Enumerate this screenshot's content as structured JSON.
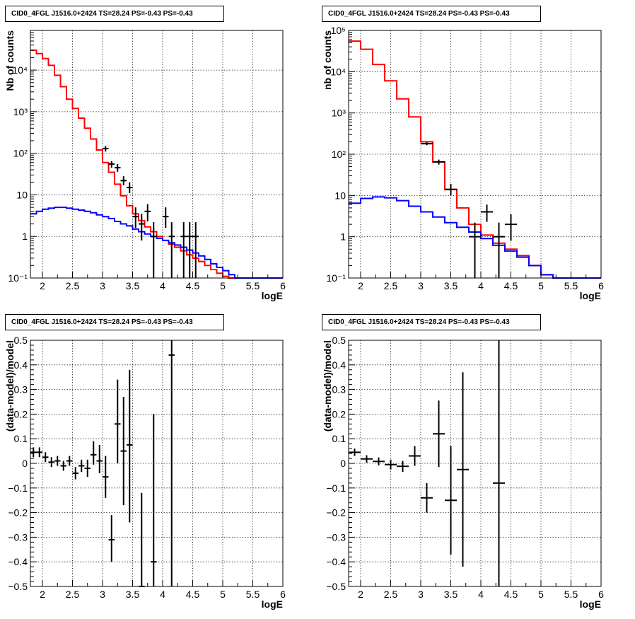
{
  "pad_titles": [
    "CID0_4FGL J1516.0+2424 TS=28.24 PS=-0.43 PS=-0.43",
    "CID0_4FGL J1516.0+2424 TS=28.24 PS=-0.43 PS=-0.43",
    "CID0_4FGL J1516.0+2424 TS=28.24 PS=-0.43 PS=-0.43",
    "CID0_4FGL J1516.0+2424 TS=28.24 PS=-0.43 PS=-0.43"
  ],
  "colors": {
    "data": "#000000",
    "total_model": "#ff0000",
    "background_model": "#0000ff",
    "grid": "#000000"
  },
  "chart_data": [
    {
      "type": "line",
      "title": "CID0_4FGL J1516.0+2424 TS=28.24 PS=-0.43 PS=-0.43",
      "xlabel": "logE",
      "ylabel": "Nb of counts",
      "xlim": [
        1.8,
        6
      ],
      "ylim": [
        0.1,
        90000
      ],
      "log_y": true,
      "grid": true,
      "x_ticks": [
        "2",
        "2.5",
        "3",
        "3.5",
        "4",
        "4.5",
        "5",
        "5.5",
        "6"
      ],
      "y_ticks": [
        {
          "value": 0.1,
          "label": "10⁻¹"
        },
        {
          "value": 1,
          "label": "1"
        },
        {
          "value": 10,
          "label": "10"
        },
        {
          "value": 100,
          "label": "10²"
        },
        {
          "value": 1000,
          "label": "10³"
        },
        {
          "value": 10000,
          "label": "10⁴"
        }
      ],
      "bin_edges": [
        1.8,
        1.9,
        2.0,
        2.1,
        2.2,
        2.3,
        2.4,
        2.5,
        2.6,
        2.7,
        2.8,
        2.9,
        3.0,
        3.1,
        3.2,
        3.3,
        3.4,
        3.5,
        3.6,
        3.7,
        3.8,
        3.9,
        4.0,
        4.1,
        4.2,
        4.3,
        4.4,
        4.5,
        4.6,
        4.7,
        4.8,
        4.9,
        5.0,
        5.1,
        5.2,
        5.3,
        5.4,
        5.5,
        5.6,
        5.7,
        5.8,
        5.9,
        6.0
      ],
      "series": [
        {
          "role": "total_model",
          "color": "#ff0000",
          "values": [
            30000,
            25000,
            19000,
            13000,
            7500,
            4000,
            2000,
            1200,
            700,
            400,
            220,
            120,
            60,
            35,
            18,
            9.5,
            5.5,
            3.5,
            2.4,
            1.7,
            1.3,
            1.0,
            0.8,
            0.65,
            0.55,
            0.45,
            0.36,
            0.3,
            0.25,
            0.2,
            0.16,
            0.13,
            0.11,
            0.1,
            0.1,
            0.1,
            0.1,
            0.1,
            0.1,
            0.1,
            0.1,
            0.1
          ]
        },
        {
          "role": "background_model",
          "color": "#0000ff",
          "values": [
            3.5,
            4.0,
            4.5,
            4.8,
            5.0,
            5.0,
            4.8,
            4.5,
            4.3,
            4.0,
            3.7,
            3.3,
            3.0,
            2.7,
            2.3,
            2.0,
            1.8,
            1.5,
            1.3,
            1.15,
            1.0,
            0.9,
            0.8,
            0.7,
            0.62,
            0.55,
            0.47,
            0.4,
            0.34,
            0.28,
            0.22,
            0.18,
            0.15,
            0.12,
            0.1,
            0.1,
            0.1,
            0.1,
            0.1,
            0.1,
            0.1,
            0.1
          ]
        },
        {
          "role": "data",
          "color": "#000000",
          "points": [
            {
              "x": 3.05,
              "y": 130,
              "lo": 110,
              "hi": 150
            },
            {
              "x": 3.15,
              "y": 55,
              "lo": 45,
              "hi": 65
            },
            {
              "x": 3.25,
              "y": 45,
              "lo": 36,
              "hi": 55
            },
            {
              "x": 3.35,
              "y": 22,
              "lo": 17,
              "hi": 28
            },
            {
              "x": 3.45,
              "y": 15,
              "lo": 11,
              "hi": 20
            },
            {
              "x": 3.55,
              "y": 3,
              "lo": 1.6,
              "hi": 5
            },
            {
              "x": 3.65,
              "y": 2,
              "lo": 0.8,
              "hi": 3.5
            },
            {
              "x": 3.75,
              "y": 4,
              "lo": 2.3,
              "hi": 6
            },
            {
              "x": 3.85,
              "y": 1,
              "lo": 0.1,
              "hi": 2.2
            },
            {
              "x": 4.05,
              "y": 3,
              "lo": 1.6,
              "hi": 5
            },
            {
              "x": 4.15,
              "y": 1,
              "lo": 0.1,
              "hi": 2.2
            },
            {
              "x": 4.35,
              "y": 1,
              "lo": 0.1,
              "hi": 2.2
            },
            {
              "x": 4.45,
              "y": 1,
              "lo": 0.1,
              "hi": 2.2
            },
            {
              "x": 4.55,
              "y": 1,
              "lo": 0.1,
              "hi": 2.2
            }
          ]
        }
      ]
    },
    {
      "type": "line",
      "title": "CID0_4FGL J1516.0+2424 TS=28.24 PS=-0.43 PS=-0.43",
      "xlabel": "logE",
      "ylabel": "nb of counts",
      "xlim": [
        1.8,
        6
      ],
      "ylim": [
        0.1,
        100000
      ],
      "log_y": true,
      "grid": true,
      "x_ticks": [
        "2",
        "2.5",
        "3",
        "3.5",
        "4",
        "4.5",
        "5",
        "5.5",
        "6"
      ],
      "y_ticks": [
        {
          "value": 0.1,
          "label": "10⁻¹"
        },
        {
          "value": 1,
          "label": "1"
        },
        {
          "value": 10,
          "label": "10"
        },
        {
          "value": 100,
          "label": "10²"
        },
        {
          "value": 1000,
          "label": "10³"
        },
        {
          "value": 10000,
          "label": "10⁴"
        },
        {
          "value": 100000,
          "label": "10⁵"
        }
      ],
      "bin_edges": [
        1.8,
        2.0,
        2.2,
        2.4,
        2.6,
        2.8,
        3.0,
        3.2,
        3.4,
        3.6,
        3.8,
        4.0,
        4.2,
        4.4,
        4.6,
        4.8,
        5.0,
        5.2,
        5.4,
        5.6,
        5.8,
        6.0
      ],
      "series": [
        {
          "role": "total_model",
          "color": "#ff0000",
          "values": [
            55000,
            35000,
            15000,
            6000,
            2200,
            800,
            200,
            65,
            14,
            5,
            2,
            1.1,
            0.7,
            0.5,
            0.35,
            0.2,
            0.12,
            0.1,
            0.1,
            0.1,
            0.1
          ]
        },
        {
          "role": "background_model",
          "color": "#0000ff",
          "values": [
            6.5,
            8.5,
            9.2,
            8.8,
            7.5,
            5.5,
            4.0,
            3.0,
            2.2,
            1.7,
            1.3,
            0.9,
            0.62,
            0.45,
            0.32,
            0.2,
            0.12,
            0.1,
            0.1,
            0.1,
            0.1
          ]
        },
        {
          "role": "data",
          "color": "#000000",
          "points": [
            {
              "x": 3.1,
              "y": 180,
              "lo": 165,
              "hi": 195
            },
            {
              "x": 3.3,
              "y": 65,
              "lo": 56,
              "hi": 74
            },
            {
              "x": 3.5,
              "y": 14,
              "lo": 10,
              "hi": 19
            },
            {
              "x": 3.9,
              "y": 1,
              "lo": 0.1,
              "hi": 2.2
            },
            {
              "x": 4.1,
              "y": 4,
              "lo": 2.3,
              "hi": 6
            },
            {
              "x": 4.3,
              "y": 1,
              "lo": 0.1,
              "hi": 2.2
            },
            {
              "x": 4.5,
              "y": 2,
              "lo": 0.8,
              "hi": 3.5
            }
          ]
        }
      ]
    },
    {
      "type": "scatter",
      "title": "CID0_4FGL J1516.0+2424 TS=28.24 PS=-0.43 PS=-0.43",
      "xlabel": "logE",
      "ylabel": "(data-model)/model",
      "xlim": [
        1.8,
        6
      ],
      "ylim": [
        -0.5,
        0.5
      ],
      "grid": true,
      "x_ticks": [
        "2",
        "2.5",
        "3",
        "3.5",
        "4",
        "4.5",
        "5",
        "5.5",
        "6"
      ],
      "y_ticks": [
        "−0.5",
        "−0.4",
        "−0.3",
        "−0.2",
        "−0.1",
        "0",
        "0.1",
        "0.2",
        "0.3",
        "0.4",
        "0.5"
      ],
      "bin_width": 0.1,
      "series": [
        {
          "role": "data",
          "color": "#000000",
          "points": [
            {
              "x": 1.85,
              "y": 0.045,
              "lo": 0.025,
              "hi": 0.065
            },
            {
              "x": 1.95,
              "y": 0.045,
              "lo": 0.025,
              "hi": 0.065
            },
            {
              "x": 2.05,
              "y": 0.025,
              "lo": 0.005,
              "hi": 0.045
            },
            {
              "x": 2.15,
              "y": 0.005,
              "lo": -0.015,
              "hi": 0.025
            },
            {
              "x": 2.25,
              "y": 0.01,
              "lo": -0.01,
              "hi": 0.03
            },
            {
              "x": 2.35,
              "y": -0.01,
              "lo": -0.03,
              "hi": 0.01
            },
            {
              "x": 2.45,
              "y": 0.01,
              "lo": -0.01,
              "hi": 0.03
            },
            {
              "x": 2.55,
              "y": -0.04,
              "lo": -0.065,
              "hi": -0.015
            },
            {
              "x": 2.65,
              "y": -0.01,
              "lo": -0.035,
              "hi": 0.015
            },
            {
              "x": 2.75,
              "y": -0.02,
              "lo": -0.055,
              "hi": 0.015
            },
            {
              "x": 2.85,
              "y": 0.035,
              "lo": -0.005,
              "hi": 0.09
            },
            {
              "x": 2.95,
              "y": 0.01,
              "lo": -0.04,
              "hi": 0.075
            },
            {
              "x": 3.05,
              "y": -0.055,
              "lo": -0.14,
              "hi": 0.03
            },
            {
              "x": 3.15,
              "y": -0.31,
              "lo": -0.4,
              "hi": -0.21
            },
            {
              "x": 3.25,
              "y": 0.16,
              "lo": 0.0,
              "hi": 0.34
            },
            {
              "x": 3.35,
              "y": 0.05,
              "lo": -0.17,
              "hi": 0.27
            },
            {
              "x": 3.45,
              "y": 0.075,
              "lo": -0.24,
              "hi": 0.38
            },
            {
              "x": 3.65,
              "y": -0.5,
              "lo": -0.5,
              "hi": -0.12
            },
            {
              "x": 3.85,
              "y": -0.4,
              "lo": -0.5,
              "hi": 0.2
            },
            {
              "x": 4.15,
              "y": 0.44,
              "lo": -0.5,
              "hi": 0.5
            }
          ]
        }
      ]
    },
    {
      "type": "scatter",
      "title": "CID0_4FGL J1516.0+2424 TS=28.24 PS=-0.43 PS=-0.43",
      "xlabel": "logE",
      "ylabel": "(data-model)/model",
      "xlim": [
        1.8,
        6
      ],
      "ylim": [
        -0.5,
        0.5
      ],
      "grid": true,
      "x_ticks": [
        "2",
        "2.5",
        "3",
        "3.5",
        "4",
        "4.5",
        "5",
        "5.5",
        "6"
      ],
      "y_ticks": [
        "−0.5",
        "−0.4",
        "−0.3",
        "−0.2",
        "−0.1",
        "0",
        "0.1",
        "0.2",
        "0.3",
        "0.4",
        "0.5"
      ],
      "bin_width": 0.2,
      "series": [
        {
          "role": "data",
          "color": "#000000",
          "points": [
            {
              "x": 1.9,
              "y": 0.045,
              "lo": 0.03,
              "hi": 0.06
            },
            {
              "x": 2.1,
              "y": 0.018,
              "lo": 0.003,
              "hi": 0.033
            },
            {
              "x": 2.3,
              "y": 0.008,
              "lo": -0.008,
              "hi": 0.024
            },
            {
              "x": 2.5,
              "y": -0.005,
              "lo": -0.025,
              "hi": 0.015
            },
            {
              "x": 2.7,
              "y": -0.012,
              "lo": -0.035,
              "hi": 0.01
            },
            {
              "x": 2.9,
              "y": 0.03,
              "lo": -0.01,
              "hi": 0.07
            },
            {
              "x": 3.1,
              "y": -0.14,
              "lo": -0.2,
              "hi": -0.08
            },
            {
              "x": 3.3,
              "y": 0.12,
              "lo": -0.015,
              "hi": 0.255
            },
            {
              "x": 3.5,
              "y": -0.15,
              "lo": -0.37,
              "hi": 0.07
            },
            {
              "x": 3.7,
              "y": -0.025,
              "lo": -0.42,
              "hi": 0.37
            },
            {
              "x": 4.3,
              "y": -0.08,
              "lo": -0.5,
              "hi": 0.5
            }
          ]
        }
      ]
    }
  ]
}
